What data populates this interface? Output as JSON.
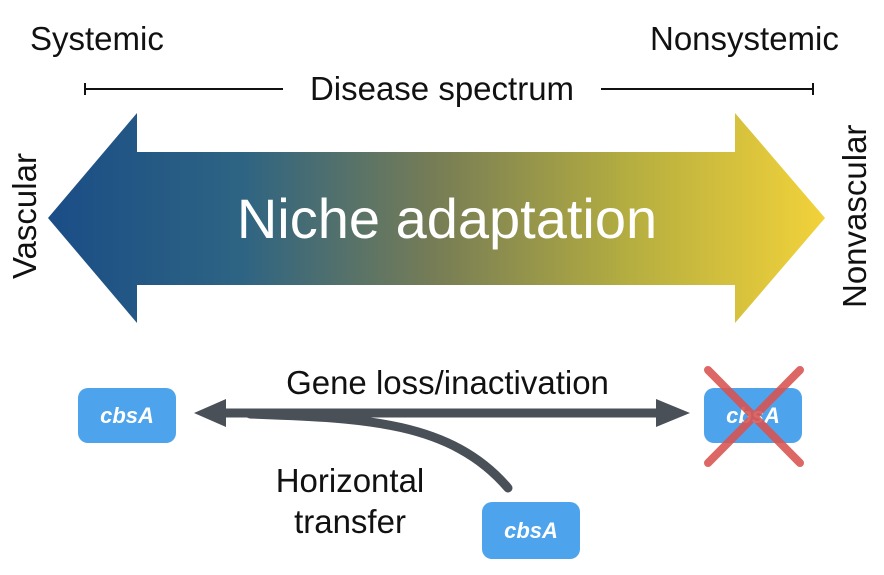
{
  "spectrum": {
    "left_label": "Systemic",
    "right_label": "Nonsystemic",
    "title": "Disease spectrum"
  },
  "main_arrow": {
    "label": "Niche adaptation",
    "left_label": "Vascular",
    "right_label": "Nonvascular",
    "gradient_colors": [
      "#1a4d86",
      "#2e6483",
      "#777d55",
      "#b5ae40",
      "#f2d23a"
    ]
  },
  "process": {
    "loss_label": "Gene loss/inactivation",
    "transfer_label_line1": "Horizontal",
    "transfer_label_line2": "transfer",
    "arrow_color": "#4a5058"
  },
  "genes": {
    "left": "cbsA",
    "right": "cbsA",
    "bottom": "cbsA",
    "box_color": "#4da3ec",
    "cross_color": "#d9534f"
  }
}
